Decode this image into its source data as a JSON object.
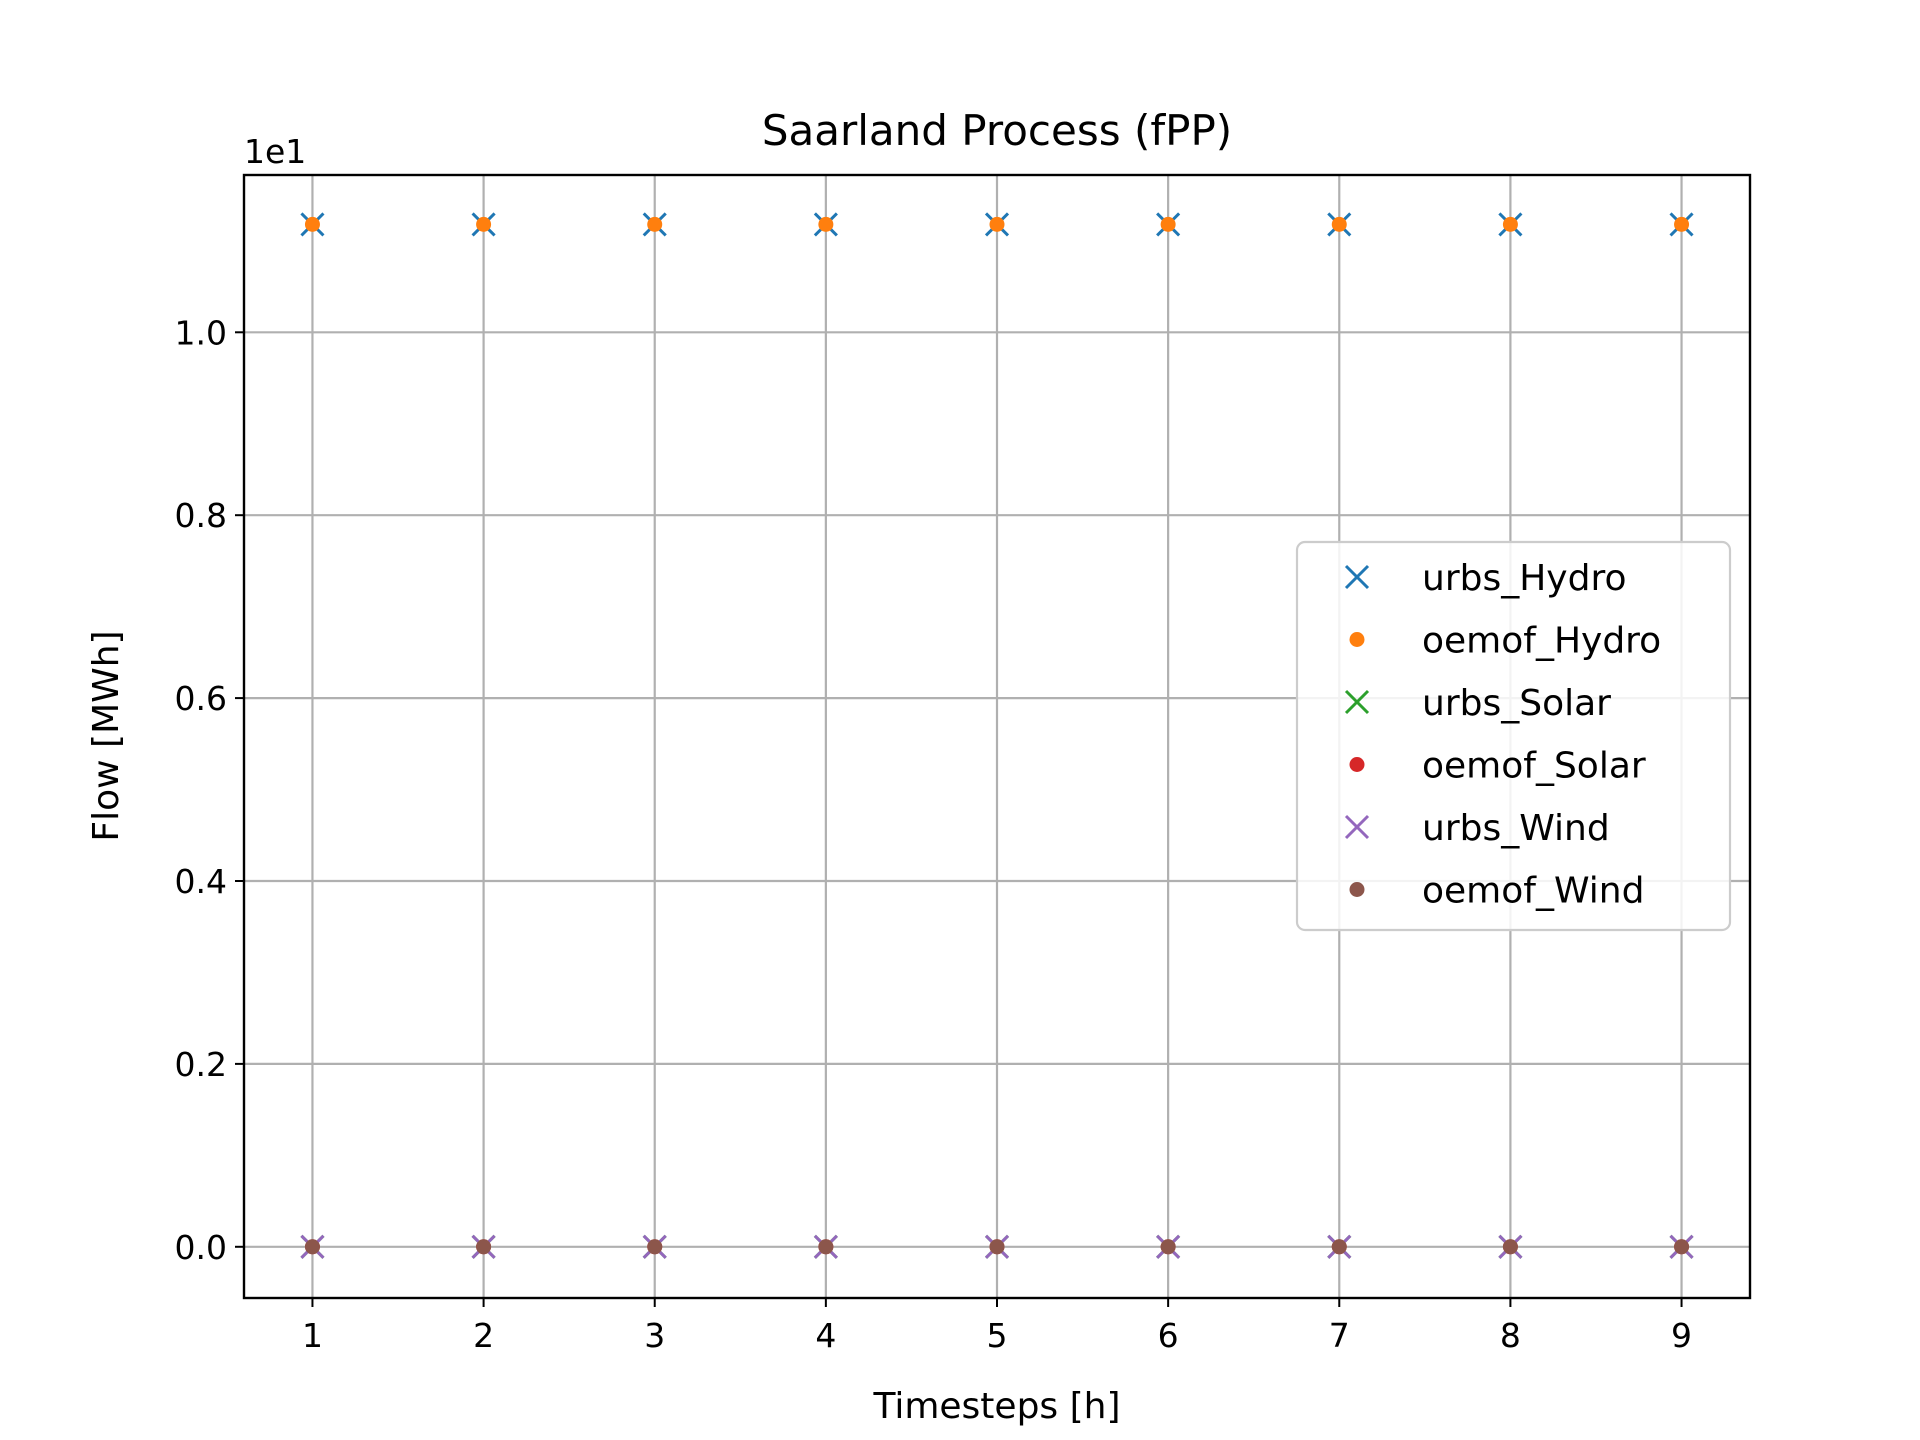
{
  "chart_data": {
    "type": "scatter",
    "title": "Saarland Process (fPP)",
    "xlabel": "Timesteps [h]",
    "ylabel": "Flow [MWh]",
    "y_offset_text": "1e1",
    "xlim": [
      0.6,
      9.4
    ],
    "ylim": [
      -0.056,
      1.172
    ],
    "x_ticks": [
      1,
      2,
      3,
      4,
      5,
      6,
      7,
      8,
      9
    ],
    "x_tick_labels": [
      "1",
      "2",
      "3",
      "4",
      "5",
      "6",
      "7",
      "8",
      "9"
    ],
    "y_ticks": [
      0.0,
      0.2,
      0.4,
      0.6,
      0.8,
      1.0
    ],
    "y_tick_labels": [
      "0.0",
      "0.2",
      "0.4",
      "0.6",
      "0.8",
      "1.0"
    ],
    "grid": true,
    "legend_position": "center-right",
    "x": [
      1,
      2,
      3,
      4,
      5,
      6,
      7,
      8,
      9
    ],
    "series": [
      {
        "name": "urbs_Hydro",
        "marker": "x",
        "color": "#1f77b4",
        "values": [
          1.118,
          1.118,
          1.118,
          1.118,
          1.118,
          1.118,
          1.118,
          1.118,
          1.118
        ]
      },
      {
        "name": "oemof_Hydro",
        "marker": "dot",
        "color": "#ff7f0e",
        "values": [
          1.118,
          1.118,
          1.118,
          1.118,
          1.118,
          1.118,
          1.118,
          1.118,
          1.118
        ]
      },
      {
        "name": "urbs_Solar",
        "marker": "x",
        "color": "#2ca02c",
        "values": [
          0,
          0,
          0,
          0,
          0,
          0,
          0,
          0,
          0
        ]
      },
      {
        "name": "oemof_Solar",
        "marker": "dot",
        "color": "#d62728",
        "values": [
          0,
          0,
          0,
          0,
          0,
          0,
          0,
          0,
          0
        ]
      },
      {
        "name": "urbs_Wind",
        "marker": "x",
        "color": "#9467bd",
        "values": [
          0,
          0,
          0,
          0,
          0,
          0,
          0,
          0,
          0
        ]
      },
      {
        "name": "oemof_Wind",
        "marker": "dot",
        "color": "#8c564b",
        "values": [
          0,
          0,
          0,
          0,
          0,
          0,
          0,
          0,
          0
        ]
      }
    ]
  }
}
